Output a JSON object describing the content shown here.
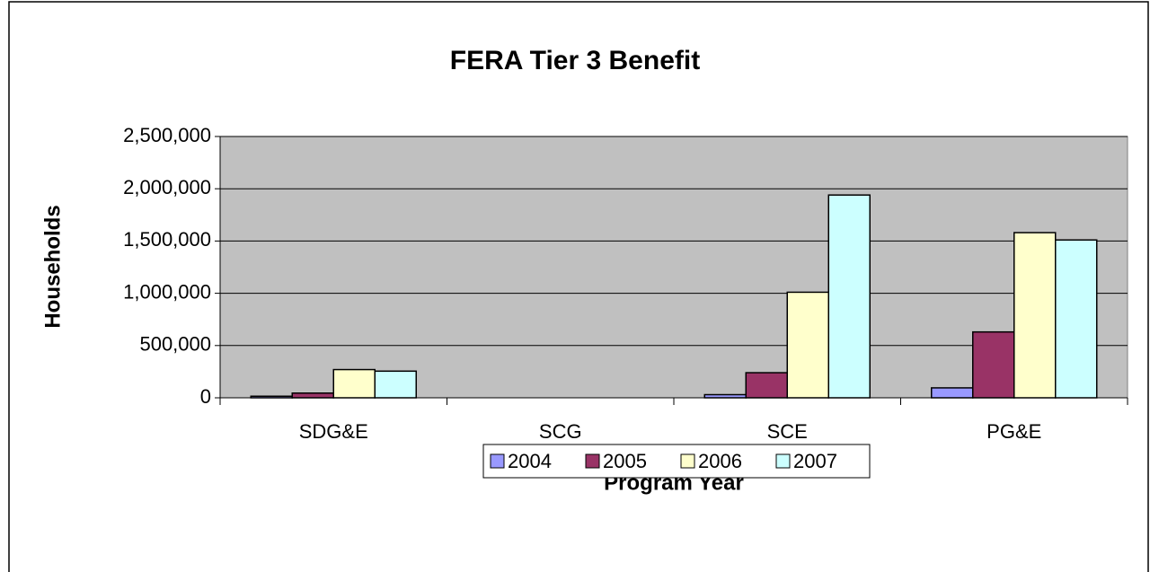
{
  "chart_data": {
    "type": "bar",
    "title": "FERA Tier 3 Benefit",
    "x_label": "Program Year",
    "y_label": "Households",
    "categories": [
      "SDG&E",
      "SCG",
      "SCE",
      "PG&E"
    ],
    "series": [
      {
        "name": "2004",
        "color": "#9999ff",
        "values": [
          15000,
          0,
          30000,
          95000
        ]
      },
      {
        "name": "2005",
        "color": "#993366",
        "values": [
          45000,
          0,
          240000,
          630000
        ]
      },
      {
        "name": "2006",
        "color": "#ffffcc",
        "values": [
          270000,
          0,
          1010000,
          1580000
        ]
      },
      {
        "name": "2007",
        "color": "#ccffff",
        "values": [
          255000,
          0,
          1940000,
          1510000
        ]
      }
    ],
    "ylim": [
      0,
      2500000
    ],
    "yticks": [
      0,
      {
        "value": 500000,
        "label": "500,000"
      },
      {
        "value": 1000000,
        "label": "1,000,000"
      },
      {
        "value": 1500000,
        "label": "1,500,000"
      },
      {
        "value": 2000000,
        "label": "2,000,000"
      },
      {
        "value": 2500000,
        "label": "2,500,000"
      }
    ],
    "grid": true,
    "legend": "bottom",
    "plot_background": "#c0c0c0"
  }
}
